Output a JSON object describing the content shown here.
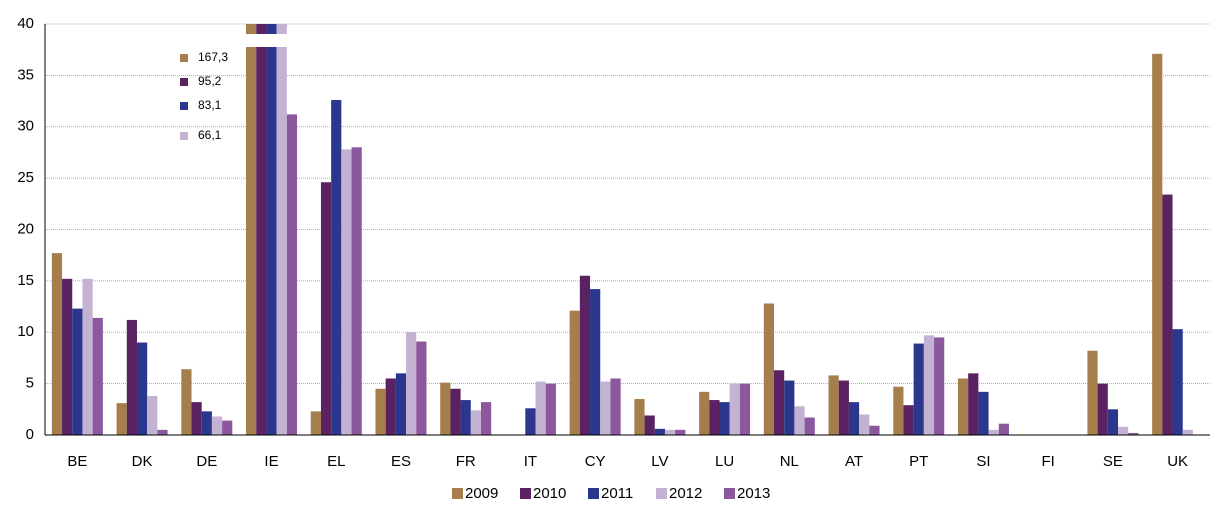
{
  "chart_data": {
    "type": "bar",
    "categories": [
      "BE",
      "DK",
      "DE",
      "IE",
      "EL",
      "ES",
      "FR",
      "IT",
      "CY",
      "LV",
      "LU",
      "NL",
      "AT",
      "PT",
      "SI",
      "FI",
      "SE",
      "UK"
    ],
    "series": [
      {
        "name": "2009",
        "color": "#a57e4c",
        "values": [
          17.7,
          3.1,
          6.4,
          167.3,
          2.3,
          4.5,
          5.1,
          null,
          12.1,
          3.5,
          4.2,
          12.8,
          5.8,
          4.7,
          5.5,
          null,
          8.2,
          37.1
        ],
        "value_labels": [
          null,
          null,
          null,
          "167,3",
          null,
          null,
          null,
          null,
          null,
          null,
          null,
          null,
          null,
          null,
          null,
          null,
          null,
          null
        ]
      },
      {
        "name": "2010",
        "color": "#5a2260",
        "values": [
          15.2,
          11.2,
          3.2,
          95.2,
          24.6,
          5.5,
          4.5,
          null,
          15.5,
          1.9,
          3.4,
          6.3,
          5.3,
          2.9,
          6.0,
          null,
          5.0,
          23.4
        ],
        "value_labels": [
          null,
          null,
          null,
          "95,2",
          null,
          null,
          null,
          null,
          null,
          null,
          null,
          null,
          null,
          null,
          null,
          null,
          null,
          null
        ]
      },
      {
        "name": "2011",
        "color": "#2b378c",
        "values": [
          12.3,
          9.0,
          2.3,
          83.1,
          32.6,
          6.0,
          3.4,
          2.6,
          14.2,
          0.6,
          3.2,
          5.3,
          3.2,
          8.9,
          4.2,
          null,
          2.5,
          10.3
        ],
        "value_labels": [
          null,
          null,
          null,
          "83,1",
          null,
          null,
          null,
          null,
          null,
          null,
          null,
          null,
          null,
          null,
          null,
          null,
          null,
          null
        ]
      },
      {
        "name": "2012",
        "color": "#c4b2d3",
        "values": [
          15.2,
          3.8,
          1.8,
          66.1,
          27.8,
          10.0,
          2.4,
          5.2,
          5.2,
          0.5,
          5.0,
          2.8,
          2.0,
          9.7,
          0.5,
          null,
          0.8,
          0.5
        ],
        "value_labels": [
          null,
          null,
          null,
          "66,1",
          null,
          null,
          null,
          null,
          null,
          null,
          null,
          null,
          null,
          null,
          null,
          null,
          null,
          null
        ]
      },
      {
        "name": "2013",
        "color": "#8b579d",
        "values": [
          11.4,
          0.5,
          1.4,
          31.2,
          28.0,
          9.1,
          3.2,
          5.0,
          5.5,
          0.5,
          5.0,
          1.7,
          0.9,
          9.5,
          1.1,
          null,
          0.2,
          null
        ]
      }
    ],
    "ylim": [
      0,
      40
    ],
    "yticks": [
      0,
      5,
      10,
      15,
      20,
      25,
      30,
      35,
      40
    ],
    "grid": true
  }
}
